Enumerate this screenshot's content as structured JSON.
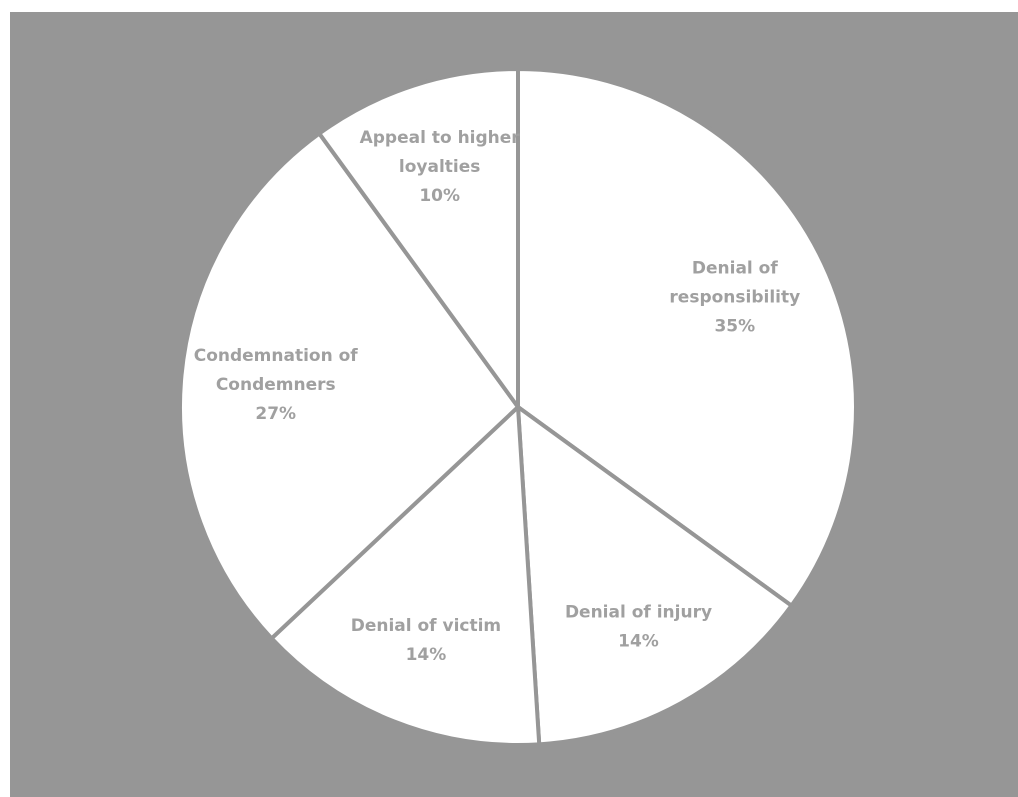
{
  "chart_data": {
    "type": "pie",
    "title": "",
    "colors": {
      "background": "#969696",
      "slice_fill": "#ffffff",
      "slice_border": "#969696",
      "label_text": "#a0a0a0"
    },
    "slices": [
      {
        "label_lines": [
          "Denial of",
          "responsibility"
        ],
        "label": "Denial of responsibility",
        "value": 35,
        "display": "35%"
      },
      {
        "label_lines": [
          "Denial of injury"
        ],
        "label": "Denial of injury",
        "value": 14,
        "display": "14%"
      },
      {
        "label_lines": [
          "Denial of victim"
        ],
        "label": "Denial of victim",
        "value": 14,
        "display": "14%"
      },
      {
        "label_lines": [
          "Condemnation of",
          "Condemners"
        ],
        "label": "Condemnation of Condemners",
        "value": 27,
        "display": "27%"
      },
      {
        "label_lines": [
          "Appeal to higher",
          "loyalties"
        ],
        "label": "Appeal to higher loyalties",
        "value": 10,
        "display": "10%"
      }
    ]
  }
}
